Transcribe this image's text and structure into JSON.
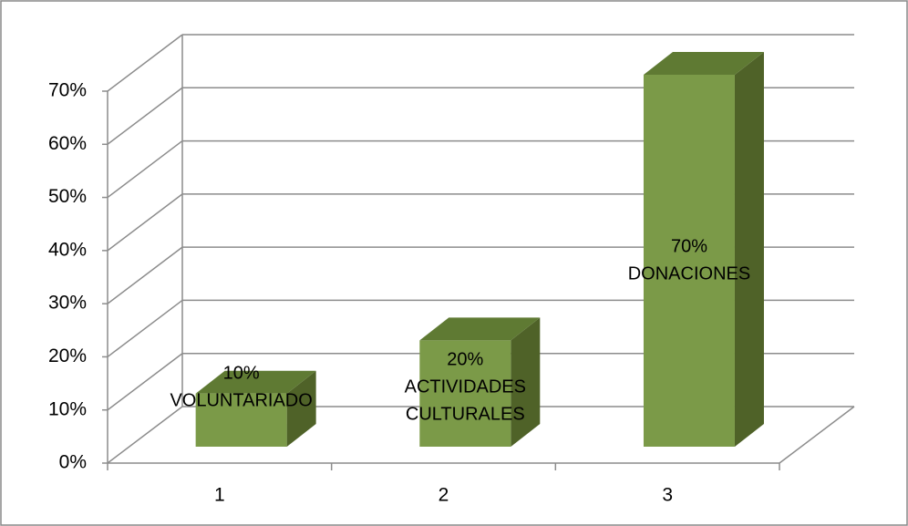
{
  "chart_data": {
    "type": "bar3d",
    "categories": [
      "1",
      "2",
      "3"
    ],
    "values": [
      10,
      20,
      70
    ],
    "value_labels": [
      "10%",
      "20%",
      "70%"
    ],
    "bar_labels": [
      [
        "VOLUNTARIADO"
      ],
      [
        "ACTIVIDADES",
        "CULTURALES"
      ],
      [
        "DONACIONES"
      ]
    ],
    "color": "#7b9a48",
    "ylim": [
      0,
      70
    ],
    "yticks": [
      {
        "value": 0,
        "label": "0%"
      },
      {
        "value": 10,
        "label": "10%"
      },
      {
        "value": 20,
        "label": "20%"
      },
      {
        "value": 30,
        "label": "30%"
      },
      {
        "value": 40,
        "label": "40%"
      },
      {
        "value": 50,
        "label": "50%"
      },
      {
        "value": 60,
        "label": "60%"
      },
      {
        "value": 70,
        "label": "70%"
      }
    ],
    "grid": true
  }
}
